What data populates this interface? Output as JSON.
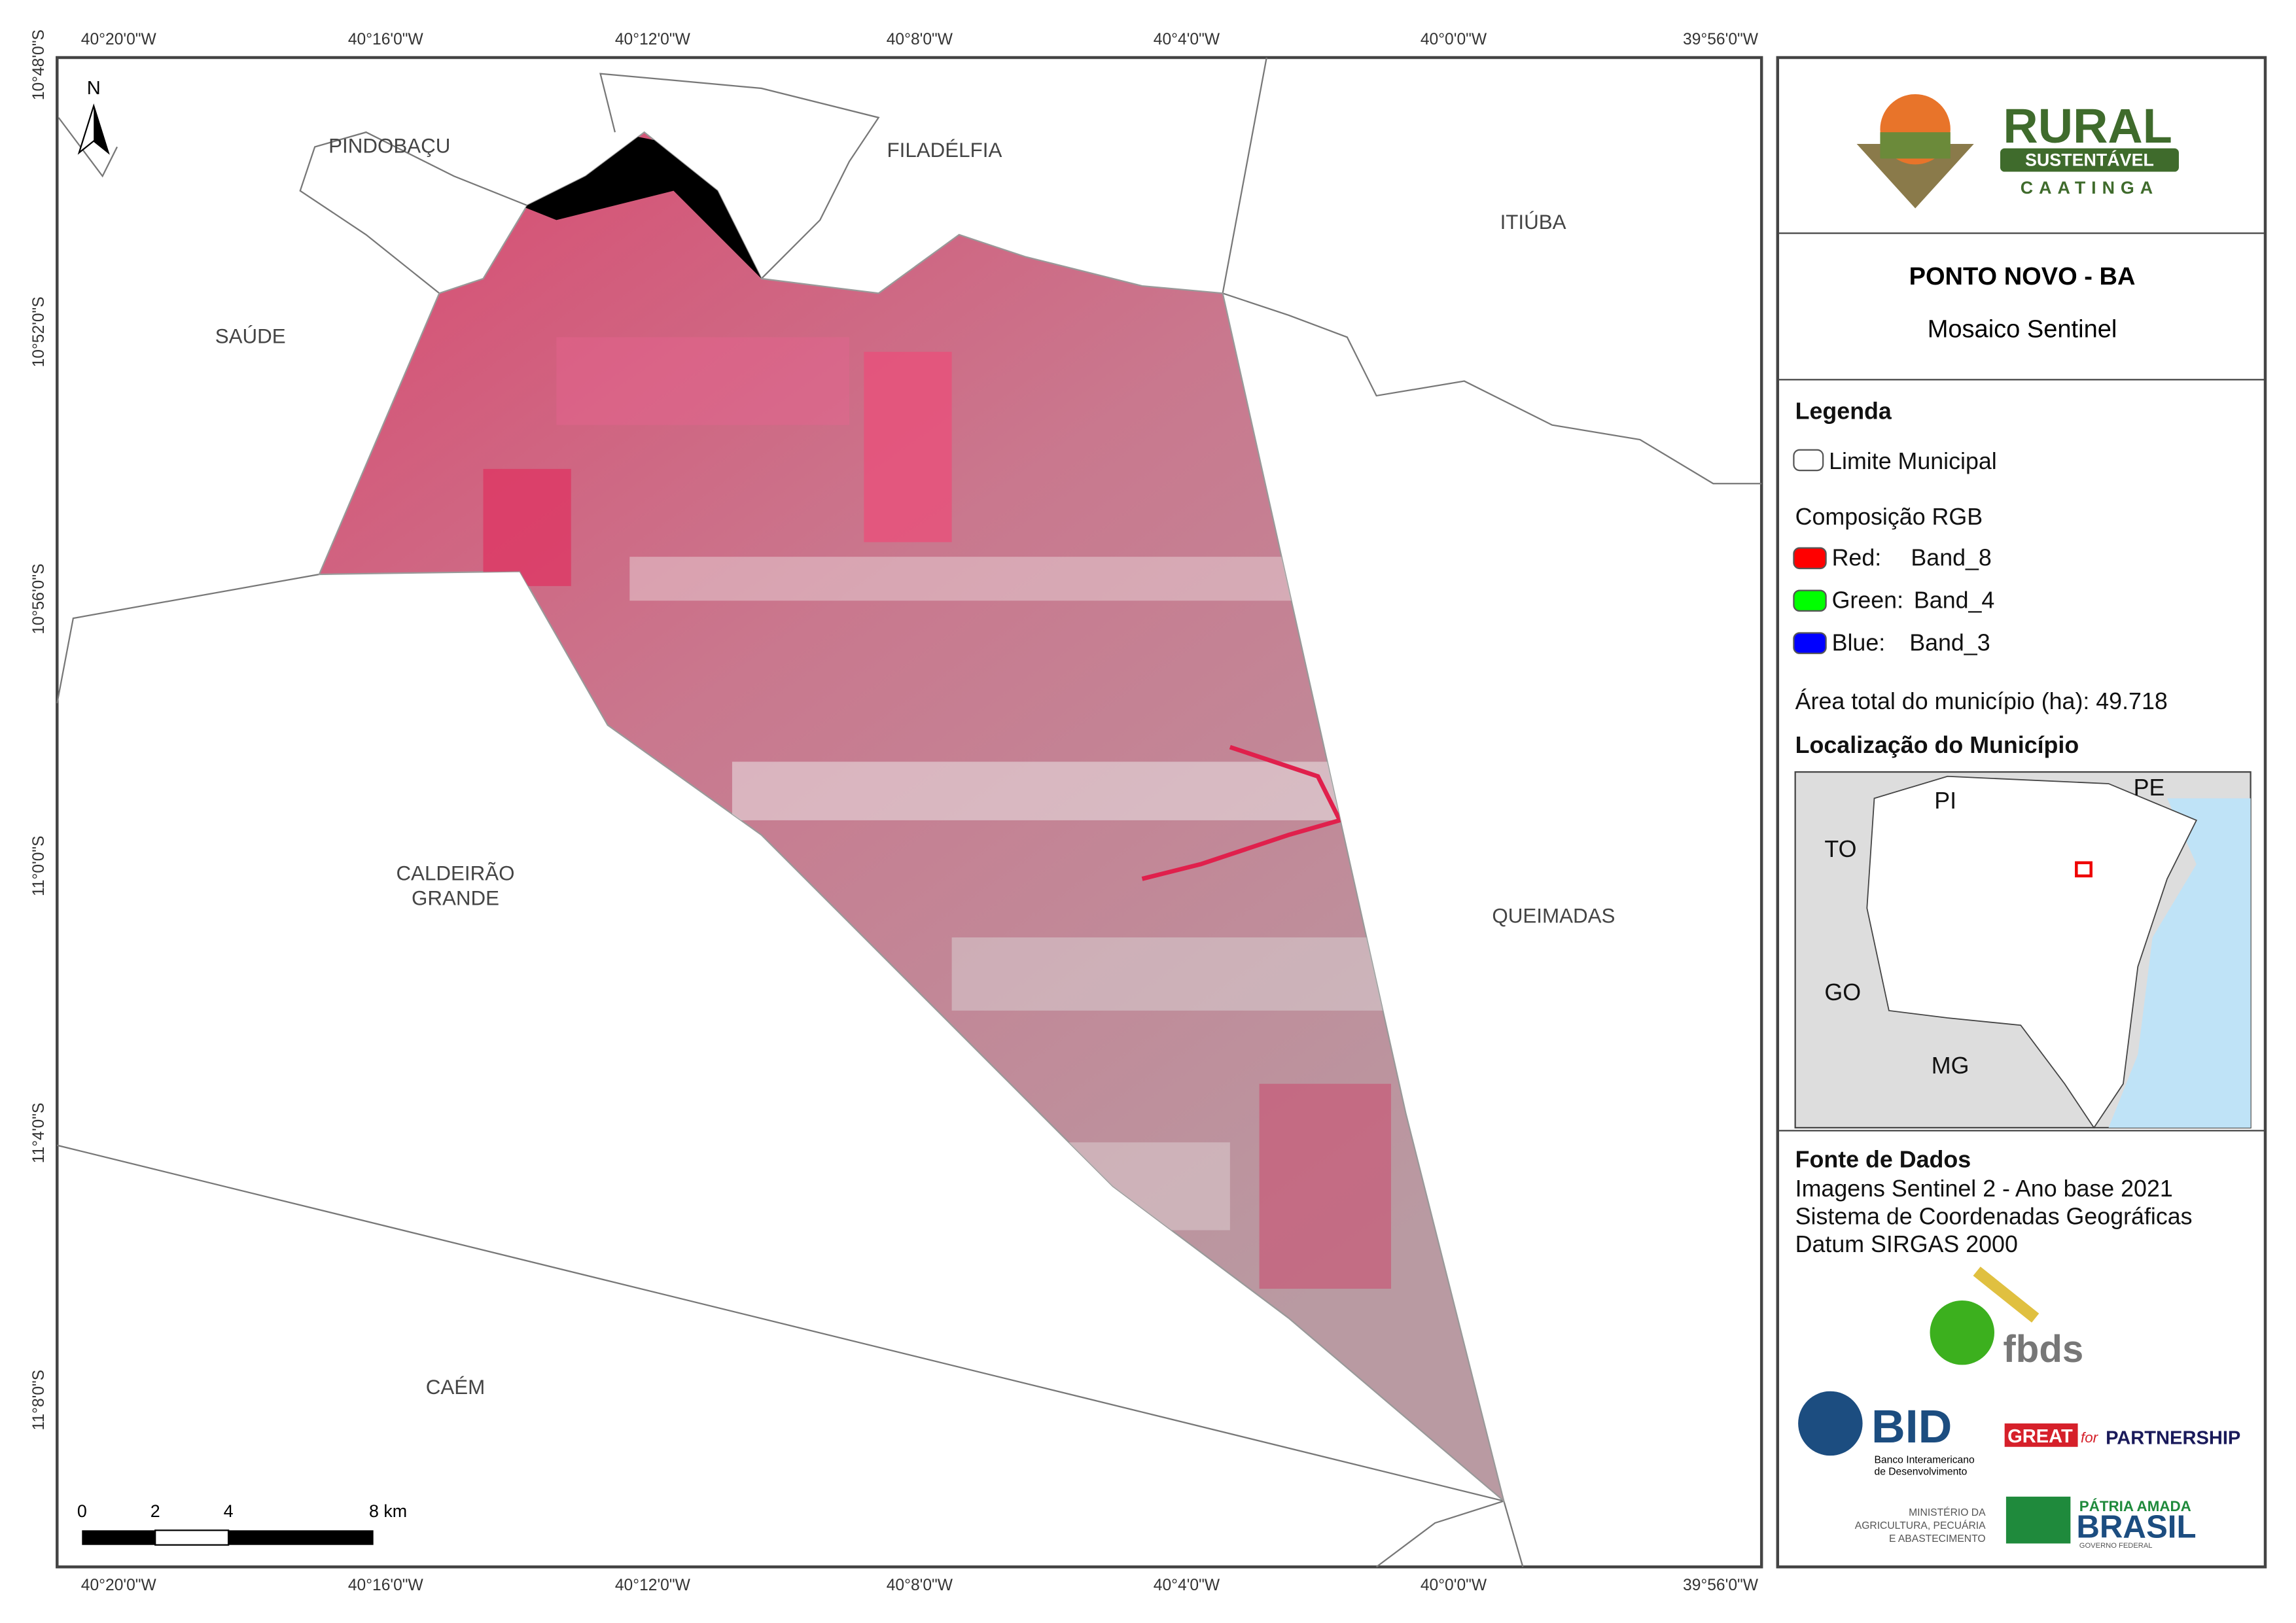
{
  "map": {
    "lon_labels": [
      "40°20'0\"W",
      "40°16'0\"W",
      "40°12'0\"W",
      "40°8'0\"W",
      "40°4'0\"W",
      "40°0'0\"W",
      "39°56'0\"W"
    ],
    "lat_labels": [
      "10°48'0\"S",
      "10°52'0\"S",
      "10°56'0\"S",
      "11°0'0\"S",
      "11°4'0\"S",
      "11°8'0\"S"
    ],
    "places": [
      "PINDOBAÇU",
      "FILADÉLFIA",
      "ITIÚBA",
      "SAÚDE",
      "CALDEIRÃO",
      "GRANDE",
      "QUEIMADAS",
      "CAÉM"
    ],
    "north": "N",
    "scale_labels": [
      "0",
      "2",
      "4",
      "8 km"
    ]
  },
  "panel": {
    "logo": {
      "title": "RURAL",
      "subtitle": "SUSTENTÁVEL",
      "tagline": "CAATINGA"
    },
    "title": "PONTO NOVO - BA",
    "subtitle": "Mosaico Sentinel",
    "legend": {
      "heading": "Legenda",
      "boundary": "Limite Municipal",
      "rgb_heading": "Composição RGB",
      "bands": [
        {
          "channel": "Red:",
          "band": "Band_8"
        },
        {
          "channel": "Green:",
          "band": "Band_4"
        },
        {
          "channel": "Blue:",
          "band": "Band_3"
        }
      ],
      "area": "Área total do município (ha): 49.718"
    },
    "location": {
      "heading": "Localização do Município",
      "labels": [
        "PI",
        "PE",
        "TO",
        "GO",
        "MG"
      ]
    },
    "sources": {
      "heading": "Fonte de Dados",
      "lines": [
        "Imagens Sentinel 2 - Ano base 2021",
        "Sistema de Coordenadas Geográficas",
        "Datum SIRGAS 2000"
      ]
    },
    "logos": {
      "fbds": "fbds",
      "bid": "BID",
      "bid_name": [
        "Banco Interamericano",
        "de Desenvolvimento"
      ],
      "great": "GREAT",
      "for": "for",
      "partnership": "PARTNERSHIP",
      "ministry": [
        "MINISTÉRIO DA",
        "AGRICULTURA, PECUÁRIA",
        "E ABASTECIMENTO"
      ],
      "patria": "PÁTRIA AMADA",
      "brasil": "BRASIL",
      "gov": "GOVERNO FEDERAL"
    }
  }
}
